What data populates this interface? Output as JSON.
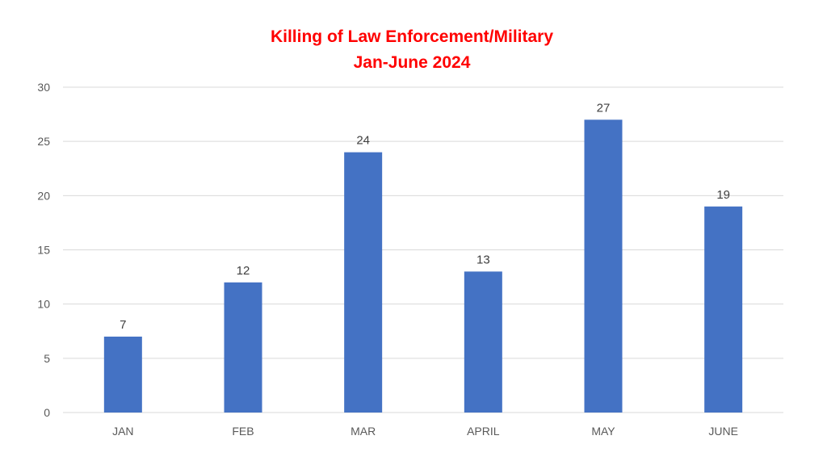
{
  "colors": {
    "bar": "#4472C4",
    "title": "#FF0000",
    "grid": "#D9D9D9"
  },
  "chart_data": {
    "type": "bar",
    "title": "Killing of Law Enforcement/Military",
    "subtitle": "Jan-June 2024",
    "xlabel": "",
    "ylabel": "",
    "categories": [
      "JAN",
      "FEB",
      "MAR",
      "APRIL",
      "MAY",
      "JUNE"
    ],
    "values": [
      7,
      12,
      24,
      13,
      27,
      19
    ],
    "ylim": [
      0,
      30
    ],
    "yticks": [
      0,
      5,
      10,
      15,
      20,
      25,
      30
    ],
    "grid": true,
    "legend": "none",
    "data_labels": true
  }
}
